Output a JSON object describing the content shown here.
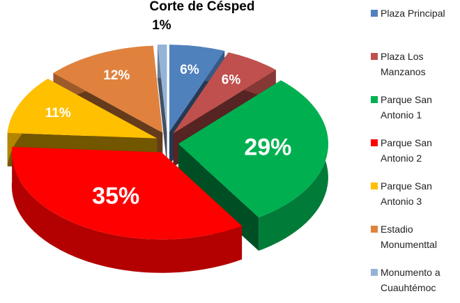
{
  "chart_data": {
    "type": "pie3d",
    "title": "Corte de Césped",
    "categories": [
      "Plaza Principal",
      "Plaza Los Manzanos",
      "Parque San Antonio 1",
      "Parque San Antonio 2",
      "Parque San Antonio 3",
      "Estadio Monumenttal",
      "Monumento a Cuauhtémoc"
    ],
    "values": [
      6,
      6,
      29,
      35,
      11,
      12,
      1
    ],
    "value_labels": [
      "6%",
      "6%",
      "29%",
      "35%",
      "11%",
      "12%",
      "1%"
    ],
    "colors": [
      "#4f81bd",
      "#c0504d",
      "#00b050",
      "#ff0000",
      "#ffc000",
      "#e0823d",
      "#95b3d7"
    ],
    "legend": "right"
  }
}
